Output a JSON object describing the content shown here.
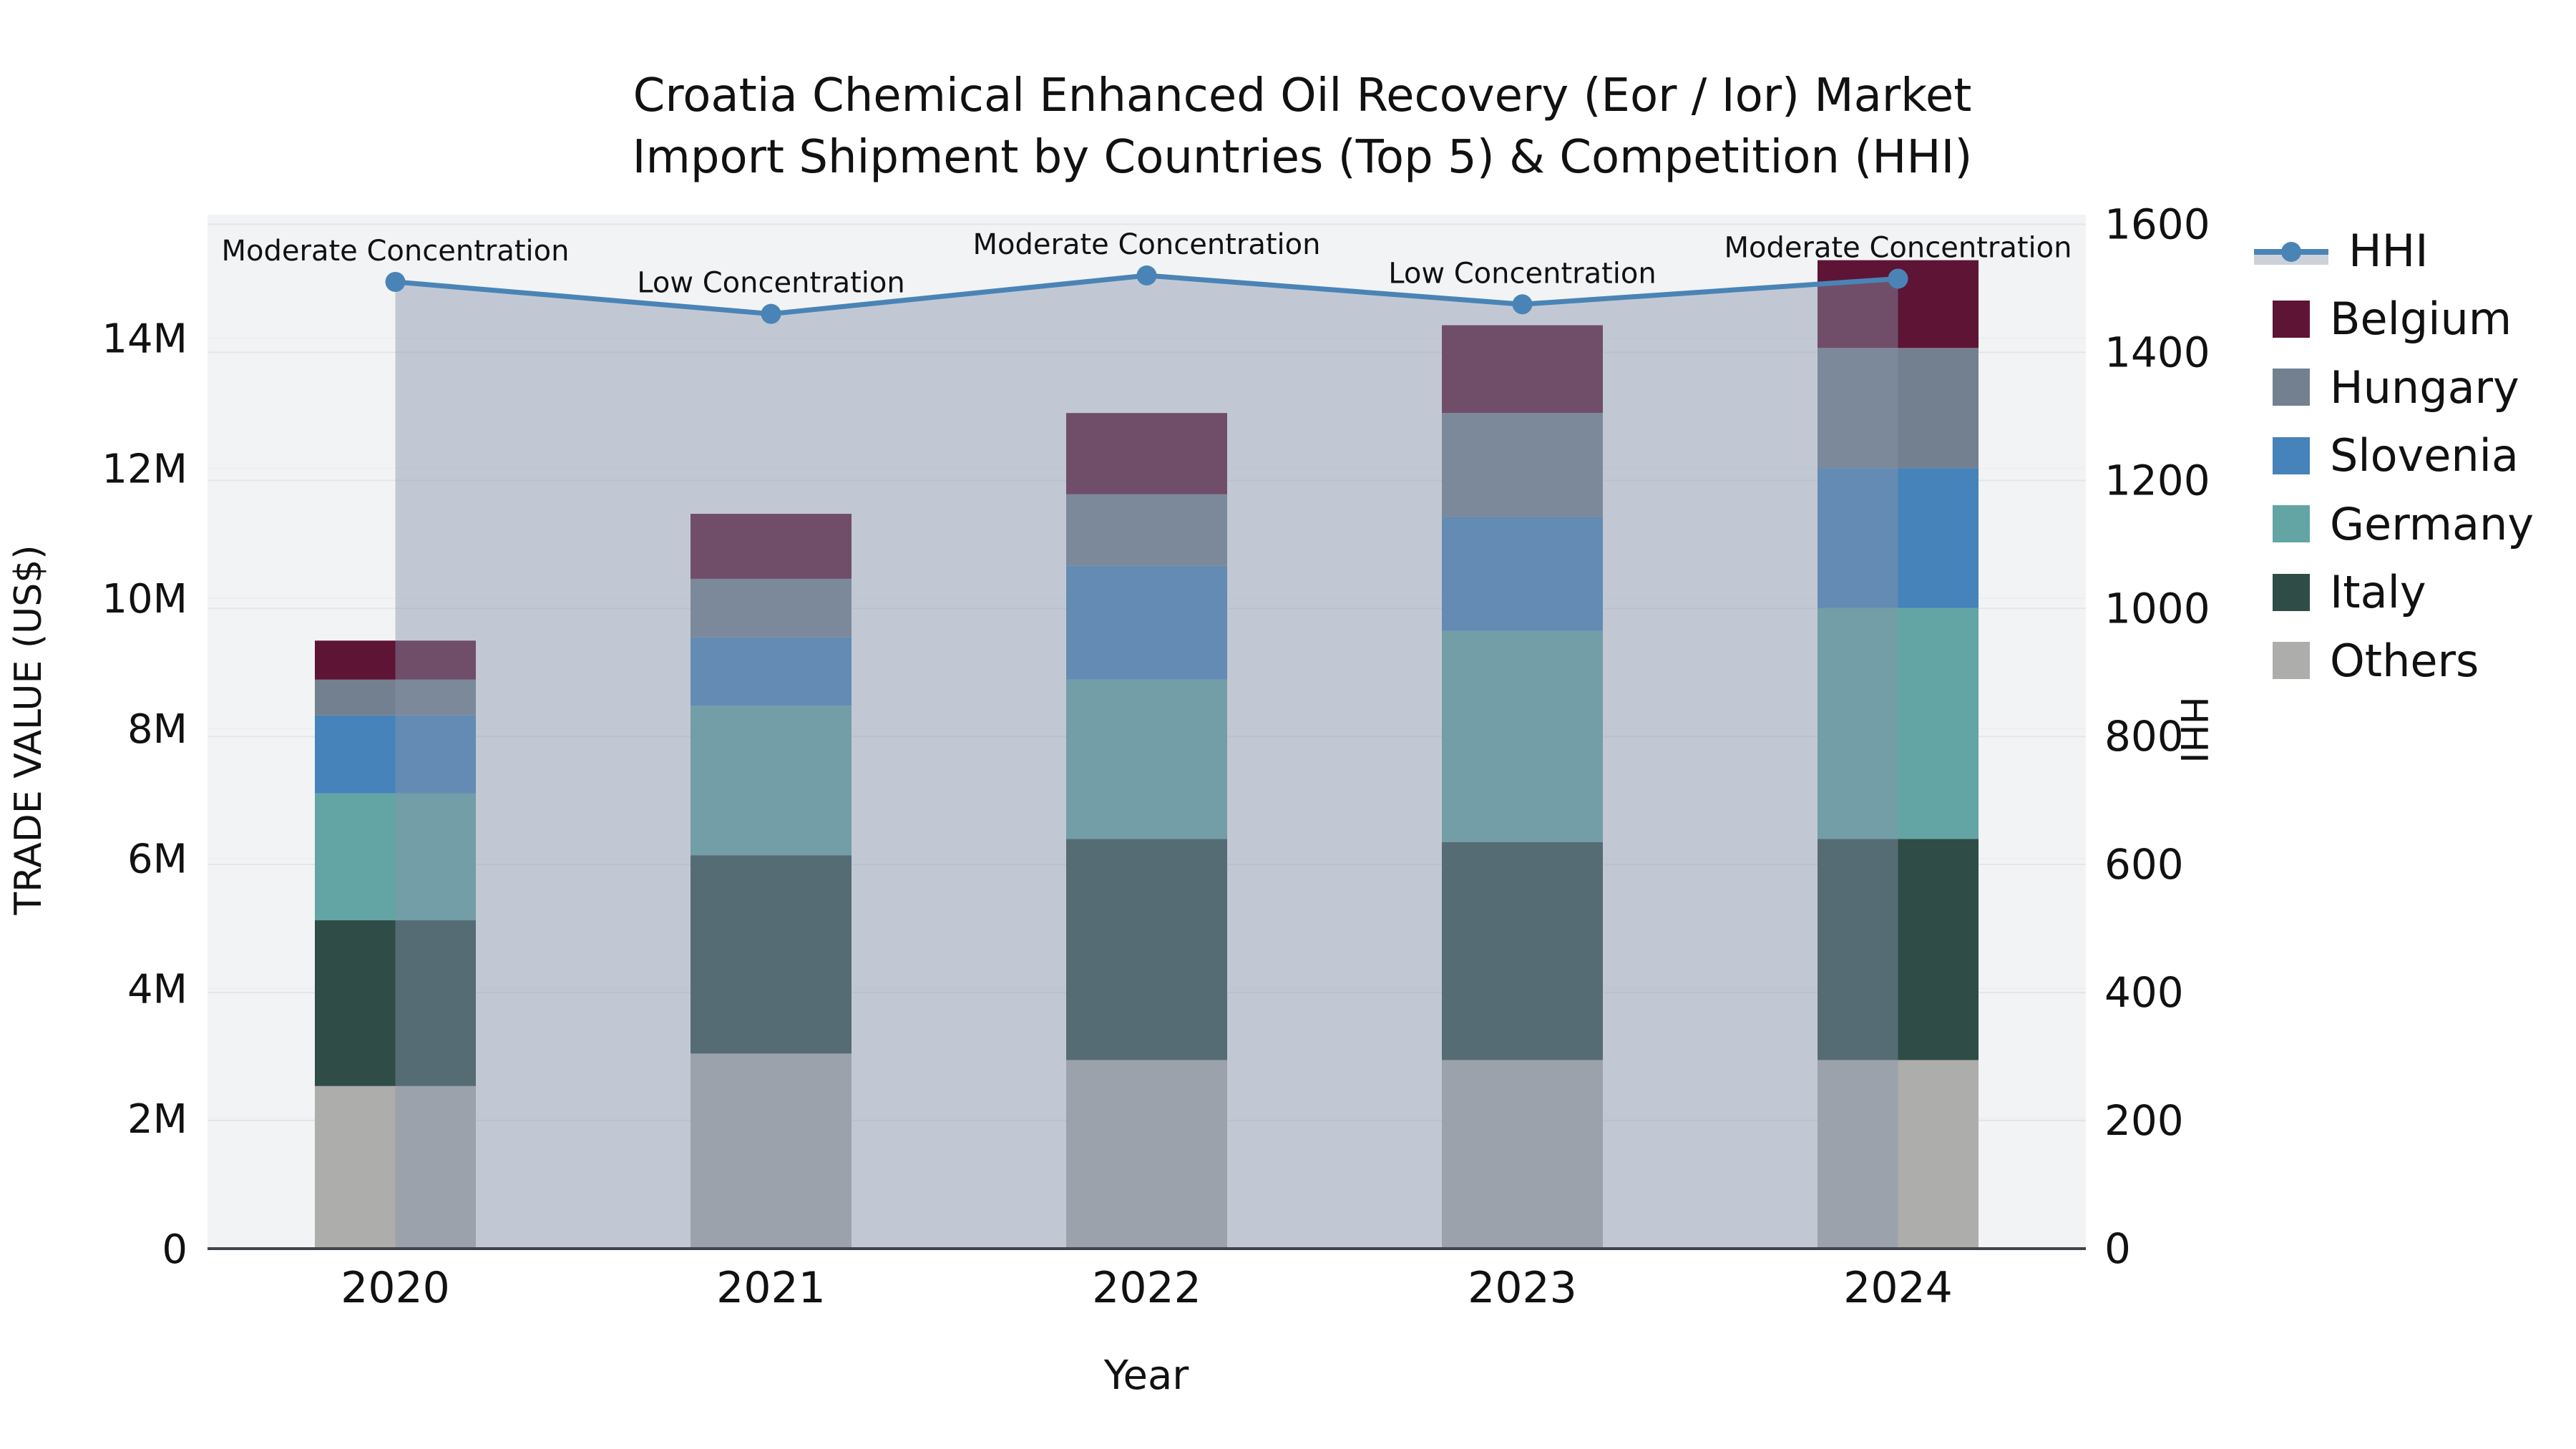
{
  "title": {
    "line1": "Croatia Chemical Enhanced Oil Recovery (Eor / Ior) Market",
    "line2": "Import Shipment by Countries (Top 5) & Competition (HHI)"
  },
  "axes": {
    "left": {
      "title": "TRADE VALUE (US$)",
      "tick_labels": [
        "0",
        "2M",
        "4M",
        "6M",
        "8M",
        "10M",
        "12M",
        "14M"
      ],
      "tick_values": [
        0,
        2,
        4,
        6,
        8,
        10,
        12,
        14
      ]
    },
    "right": {
      "title": "HHI",
      "tick_labels": [
        "0",
        "200",
        "400",
        "600",
        "800",
        "1000",
        "1200",
        "1400",
        "1600"
      ],
      "tick_values": [
        0,
        200,
        400,
        600,
        800,
        1000,
        1200,
        1400,
        1600
      ]
    },
    "x": {
      "title": "Year"
    }
  },
  "legend": {
    "items": [
      {
        "label": "HHI",
        "type": "line",
        "color": "#4a84b6",
        "band_color": "#ccd1da"
      },
      {
        "label": "Belgium",
        "type": "box",
        "color": "#5e1435"
      },
      {
        "label": "Hungary",
        "type": "box",
        "color": "#73808f"
      },
      {
        "label": "Slovenia",
        "type": "box",
        "color": "#4583ba"
      },
      {
        "label": "Germany",
        "type": "box",
        "color": "#63a5a5"
      },
      {
        "label": "Italy",
        "type": "box",
        "color": "#2f4c47"
      },
      {
        "label": "Others",
        "type": "box",
        "color": "#adadab"
      }
    ]
  },
  "chart_data": {
    "type": "bar",
    "subtype": "stacked-bars-with-line-overlay",
    "categories": [
      "2020",
      "2021",
      "2022",
      "2023",
      "2024"
    ],
    "value_unit": "millions of US$",
    "stack_order": "bottom-to-top",
    "series": [
      {
        "name": "Others",
        "color": "#adadab",
        "values": [
          2.5,
          3.0,
          2.9,
          2.9,
          2.9
        ]
      },
      {
        "name": "Italy",
        "color": "#2f4c47",
        "values": [
          2.55,
          3.05,
          3.4,
          3.35,
          3.4
        ]
      },
      {
        "name": "Germany",
        "color": "#63a5a5",
        "values": [
          1.95,
          2.3,
          2.45,
          3.25,
          3.55
        ]
      },
      {
        "name": "Slovenia",
        "color": "#4583ba",
        "values": [
          1.2,
          1.05,
          1.75,
          1.75,
          2.15
        ]
      },
      {
        "name": "Hungary",
        "color": "#73808f",
        "values": [
          0.55,
          0.9,
          1.1,
          1.6,
          1.85
        ]
      },
      {
        "name": "Belgium",
        "color": "#5e1435",
        "values": [
          0.6,
          1.0,
          1.25,
          1.35,
          1.35
        ]
      }
    ],
    "bar_totals": [
      9.35,
      11.3,
      12.85,
      14.2,
      15.2
    ],
    "line_series": {
      "name": "HHI",
      "axis": "right",
      "color": "#4a84b6",
      "fill_color": "rgba(135,148,170,0.45)",
      "values": [
        1510,
        1460,
        1520,
        1475,
        1515
      ]
    },
    "annotations": [
      "Moderate Concentration",
      "Low Concentration",
      "Moderate Concentration",
      "Low Concentration",
      "Moderate Concentration"
    ],
    "xlabel": "Year",
    "ylabel_left": "TRADE VALUE (US$)",
    "ylabel_right": "HHI",
    "ylim_left": [
      0,
      15.9
    ],
    "ylim_right": [
      0,
      1615
    ],
    "grid": true,
    "legend_position": "right"
  }
}
